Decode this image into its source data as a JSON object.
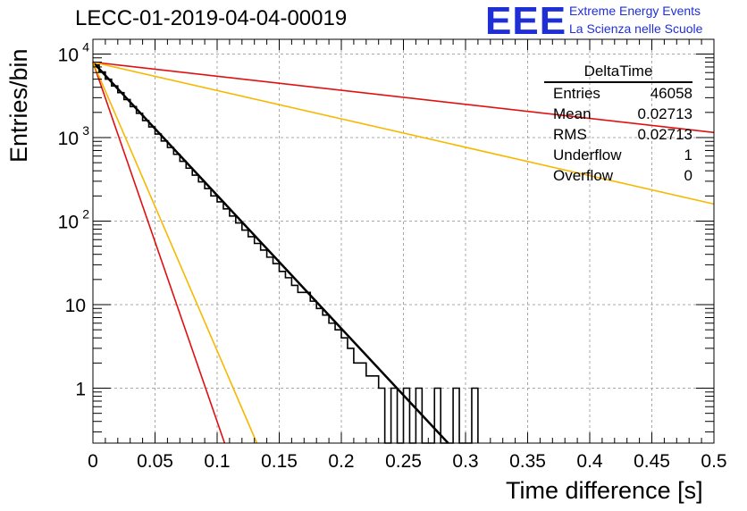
{
  "title": "LECC-01-2019-04-04-00019",
  "logo": {
    "mark": "EEE",
    "line1": "Extreme Energy Events",
    "line2": "La Scienza nelle Scuole"
  },
  "stats_box": {
    "title": "DeltaTime",
    "rows": [
      {
        "label": "Entries",
        "value": "46058"
      },
      {
        "label": "Mean",
        "value": "0.02713"
      },
      {
        "label": "RMS",
        "value": "0.02713"
      },
      {
        "label": "Underflow",
        "value": "1"
      },
      {
        "label": "Overflow",
        "value": "0"
      }
    ]
  },
  "chart_data": {
    "type": "line",
    "xlabel": "Time difference [s]",
    "ylabel": "Entries/bin",
    "xlim": [
      0,
      0.5
    ],
    "ylim": [
      0.22,
      15000
    ],
    "yscale": "log",
    "grid": true,
    "x_ticks": [
      "0",
      "0.05",
      "0.1",
      "0.15",
      "0.2",
      "0.25",
      "0.3",
      "0.35",
      "0.4",
      "0.45",
      "0.5"
    ],
    "y_ticks": [
      {
        "value": 1,
        "label": "1"
      },
      {
        "value": 10,
        "label": "10"
      },
      {
        "value": 100,
        "label": "10",
        "exp": "2"
      },
      {
        "value": 1000,
        "label": "10",
        "exp": "3"
      },
      {
        "value": 10000,
        "label": "10",
        "exp": "4"
      }
    ],
    "colors": {
      "histogram": "#000000",
      "fit": "#000000",
      "red": "#e01010",
      "yellow": "#f7b800"
    },
    "histogram": {
      "bin_width": 0.005,
      "x_start": 0,
      "counts": [
        7400,
        6100,
        5000,
        4150,
        3450,
        2850,
        2350,
        1950,
        1600,
        1340,
        1100,
        910,
        760,
        630,
        520,
        430,
        355,
        295,
        245,
        200,
        170,
        140,
        115,
        95,
        78,
        65,
        54,
        45,
        37,
        31,
        25,
        21,
        17,
        14,
        14,
        11,
        9,
        7.5,
        6,
        5,
        4,
        3,
        2,
        2,
        1.4,
        1.4,
        1,
        0,
        1,
        0,
        1,
        0,
        1,
        0,
        0,
        1,
        0,
        0,
        1,
        0,
        0,
        1
      ]
    },
    "series": [
      {
        "color": "#000000",
        "x": [
          0,
          0.286
        ],
        "y": [
          8000,
          0.22
        ],
        "width": 2.5
      },
      {
        "color": "#e01010",
        "x": [
          0,
          0.106
        ],
        "y": [
          8000,
          0.22
        ],
        "width": 1.6
      },
      {
        "color": "#f7b800",
        "x": [
          0,
          0.132
        ],
        "y": [
          8000,
          0.22
        ],
        "width": 1.6
      },
      {
        "color": "#e01010",
        "x": [
          0,
          0.5
        ],
        "y": [
          8000,
          1150
        ],
        "width": 1.6
      },
      {
        "color": "#f7b800",
        "x": [
          0,
          0.5
        ],
        "y": [
          8000,
          160
        ],
        "width": 1.6
      }
    ]
  }
}
